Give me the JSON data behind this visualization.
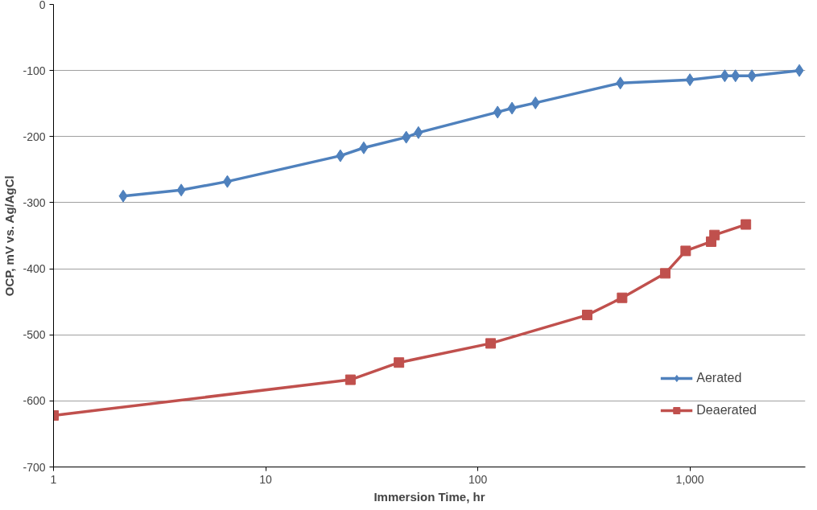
{
  "chart_data": {
    "type": "line",
    "xlabel": "Immersion Time, hr",
    "ylabel": "OCP, mV vs. Ag/AgCl",
    "log": "x",
    "xlim": [
      1,
      3500
    ],
    "xticks": [
      1,
      10,
      100,
      {
        "value": 1000,
        "label": "1,000"
      }
    ],
    "ylim": [
      -700,
      0
    ],
    "yticks": [
      -700,
      -600,
      -500,
      -400,
      -300,
      -200,
      -100,
      0
    ],
    "grid": "y",
    "legend": "bottom right",
    "line_style": "solid",
    "series": [
      {
        "name": "Aerated",
        "color": "#4f81bd",
        "marker": "diamond",
        "x": [
          2.13,
          4.0,
          6.6,
          22.5,
          29,
          46,
          52.5,
          124,
          145,
          187,
          470,
          1000,
          1460,
          1640,
          1960,
          3280
        ],
        "values": [
          -290,
          -281,
          -268,
          -229,
          -217,
          -201,
          -194,
          -163,
          -157,
          -149,
          -119,
          -114,
          -108,
          -108,
          -108,
          -100
        ]
      },
      {
        "name": "Deaerated",
        "color": "#c0504d",
        "marker": "square",
        "x": [
          1,
          25.1,
          42.5,
          115,
          328,
          479,
          765,
          955,
          1259,
          1306,
          1836
        ],
        "values": [
          -622,
          -568,
          -542,
          -513,
          -470,
          -444,
          -407,
          -373,
          -359,
          -349,
          -333
        ]
      }
    ]
  }
}
